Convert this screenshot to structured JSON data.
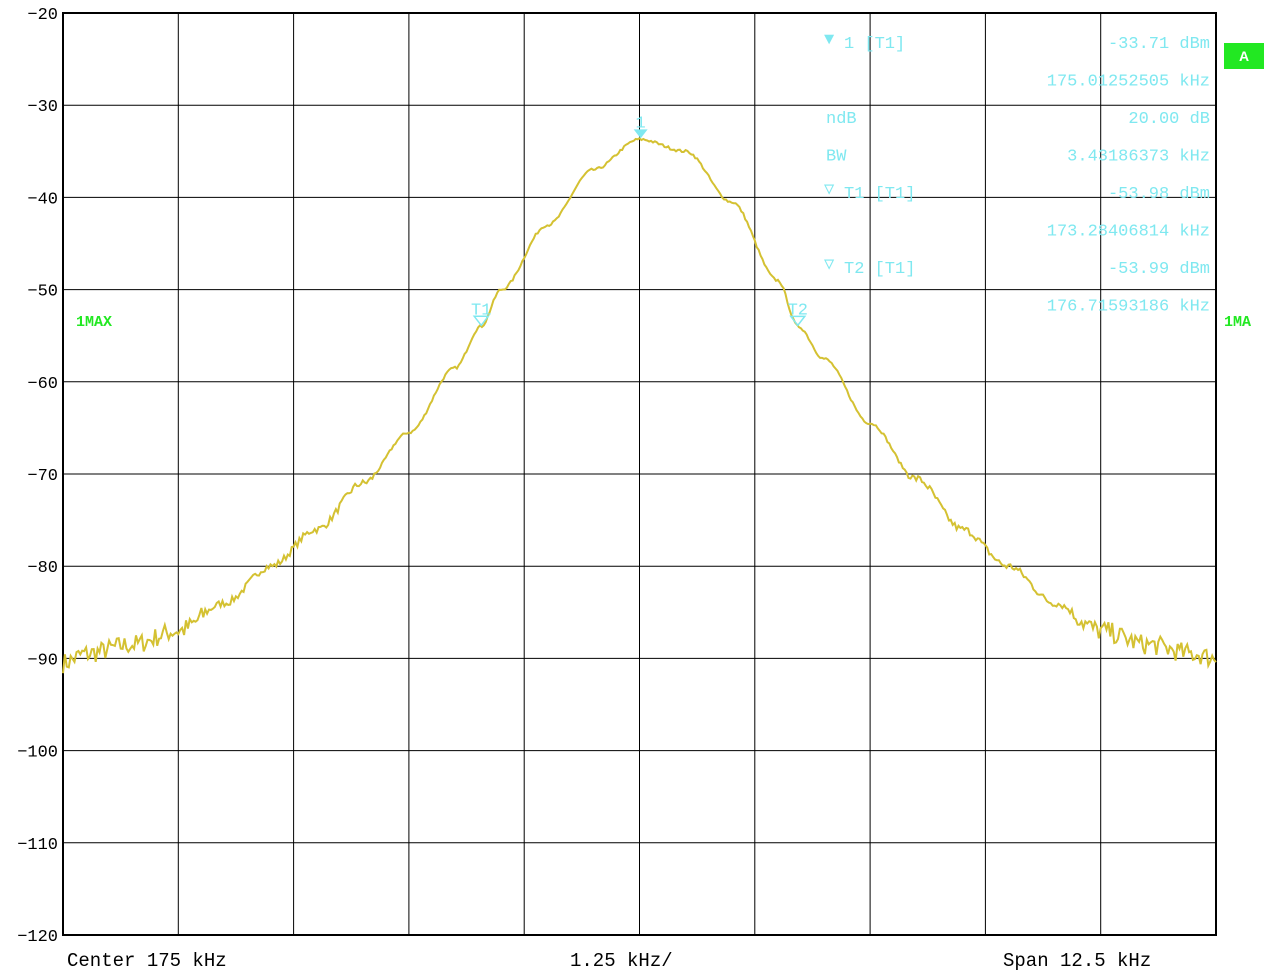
{
  "chart_data": {
    "type": "line",
    "title": "",
    "xlabel": "",
    "ylabel": "",
    "x_range": [
      168.75,
      181.25
    ],
    "ylim": [
      -120,
      -20
    ],
    "y_ticks": [
      -20,
      -30,
      -40,
      -50,
      -60,
      -70,
      -80,
      -90,
      -100,
      -110,
      -120
    ],
    "x_divisions": 10,
    "grid": true,
    "series_color": "#D4C132",
    "series": [
      {
        "x": [
          168.75,
          169.0,
          169.5,
          170.0,
          170.5,
          171.0,
          171.5,
          172.0,
          172.5,
          173.0,
          173.28,
          173.5,
          174.0,
          174.5,
          175.0,
          175.5,
          176.0,
          176.5,
          176.72,
          177.0,
          177.5,
          178.0,
          178.5,
          179.0,
          179.5,
          180.0,
          180.5,
          181.0,
          181.25
        ],
        "y": [
          -90.5,
          -89.5,
          -88.5,
          -87.0,
          -84.0,
          -80.0,
          -76.0,
          -71.0,
          -65.5,
          -58.5,
          -54.0,
          -50.0,
          -43.0,
          -37.0,
          -33.7,
          -35.0,
          -40.5,
          -49.0,
          -54.0,
          -57.5,
          -64.5,
          -70.5,
          -76.0,
          -80.0,
          -84.0,
          -87.0,
          -88.5,
          -89.5,
          -90.0
        ]
      }
    ],
    "markers": [
      {
        "label": "1",
        "x": 175.01252505,
        "y": -33.71
      },
      {
        "label": "T1",
        "x": 173.28406814,
        "y": -53.98
      },
      {
        "label": "T2",
        "x": 176.71593186,
        "y": -53.99
      }
    ]
  },
  "marker_info": [
    {
      "symbol": "▼",
      "name": "1 [T1]",
      "value": "-33.71 dBm"
    },
    {
      "symbol": "",
      "name": "",
      "value": "175.01252505 kHz"
    },
    {
      "symbol": "",
      "name": "ndB",
      "value": "20.00 dB"
    },
    {
      "symbol": "",
      "name": "BW",
      "value": "3.43186373 kHz"
    },
    {
      "symbol": "▽",
      "name": "T1 [T1]",
      "value": "-53.98 dBm"
    },
    {
      "symbol": "",
      "name": "",
      "value": "173.28406814 kHz"
    },
    {
      "symbol": "▽",
      "name": "T2 [T1]",
      "value": "-53.99 dBm"
    },
    {
      "symbol": "",
      "name": "",
      "value": "176.71593186 kHz"
    }
  ],
  "bottom": {
    "center": "Center 175 kHz",
    "div": "1.25 kHz/",
    "span": "Span 12.5 kHz"
  },
  "badge": "A",
  "trace_left": "1MAX",
  "trace_right": "1MA",
  "colors": {
    "trace": "#D4C132",
    "marker": "#7FE8F0",
    "green": "#22E822"
  }
}
